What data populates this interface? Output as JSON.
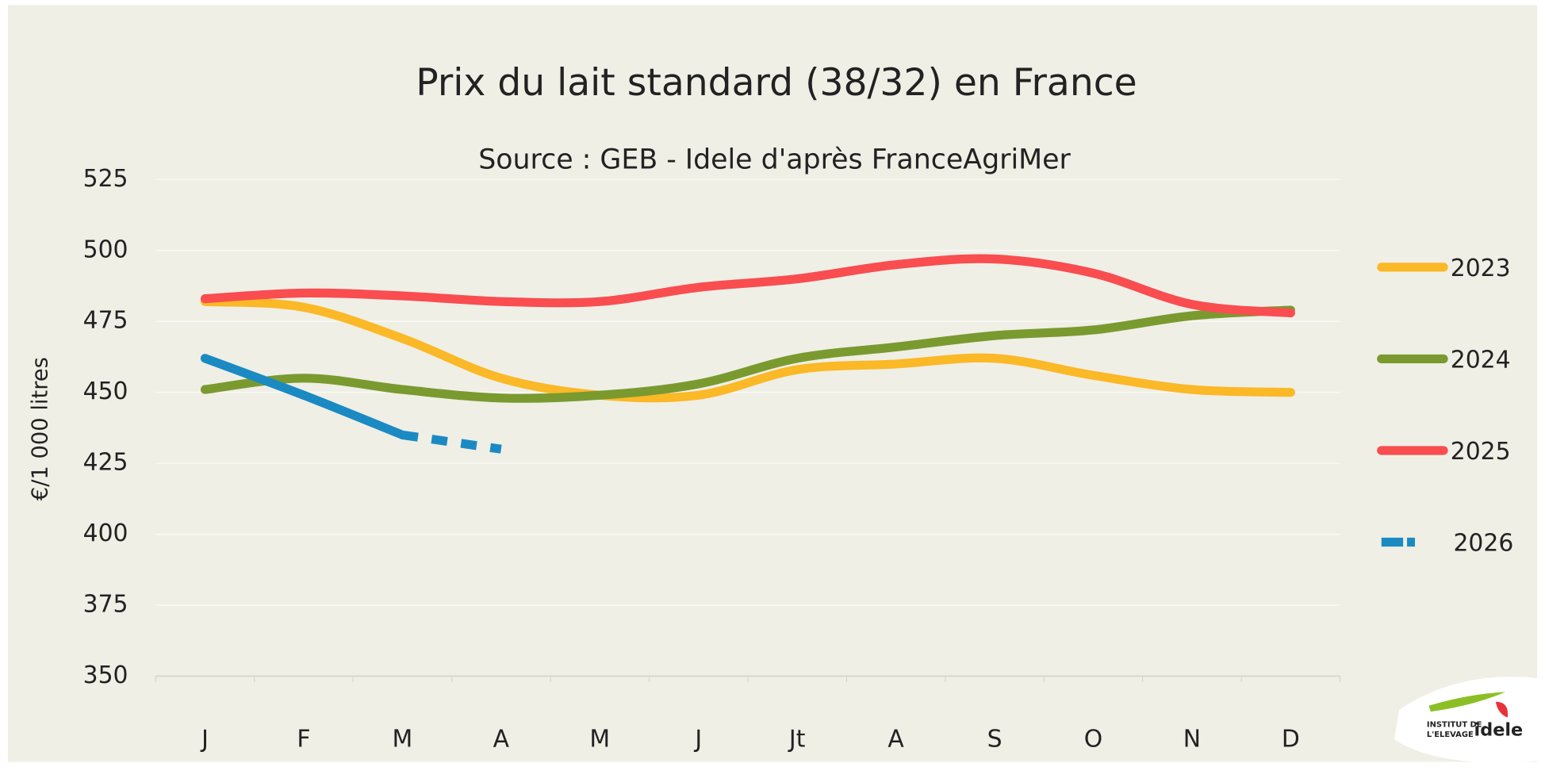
{
  "chart_data": {
    "type": "line",
    "title": "Prix du lait standard (38/32) en France",
    "subtitle": "Source : GEB - Idele d'après FranceAgriMer",
    "y_label": "€/1 000 litres",
    "categories": [
      "J",
      "F",
      "M",
      "A",
      "M",
      "J",
      "Jt",
      "A",
      "S",
      "O",
      "N",
      "D"
    ],
    "series": [
      {
        "name": "2023",
        "color": "#fbb827",
        "values": [
          482,
          480,
          469,
          455,
          449,
          449,
          458,
          460,
          462,
          456,
          451,
          450
        ]
      },
      {
        "name": "2024",
        "color": "#7a9a2f",
        "values": [
          451,
          455,
          451,
          448,
          449,
          453,
          462,
          466,
          470,
          472,
          477,
          479
        ]
      },
      {
        "name": "2025",
        "color": "#f94d50",
        "values": [
          483,
          485,
          484,
          482,
          482,
          487,
          490,
          495,
          497,
          492,
          481,
          478
        ]
      },
      {
        "name": "2026",
        "color": "#1b8ac3",
        "values": [
          462,
          449,
          435,
          430,
          null,
          null,
          null,
          null,
          null,
          null,
          null,
          null
        ]
      }
    ],
    "ylim": [
      350,
      525
    ],
    "yticks": [
      350,
      375,
      400,
      425,
      450,
      475,
      500,
      525
    ],
    "grid": true,
    "legend": "right"
  },
  "logo": {
    "line1": "INSTITUT DE",
    "line2": "L'ELEVAGE",
    "brand": "idele"
  }
}
